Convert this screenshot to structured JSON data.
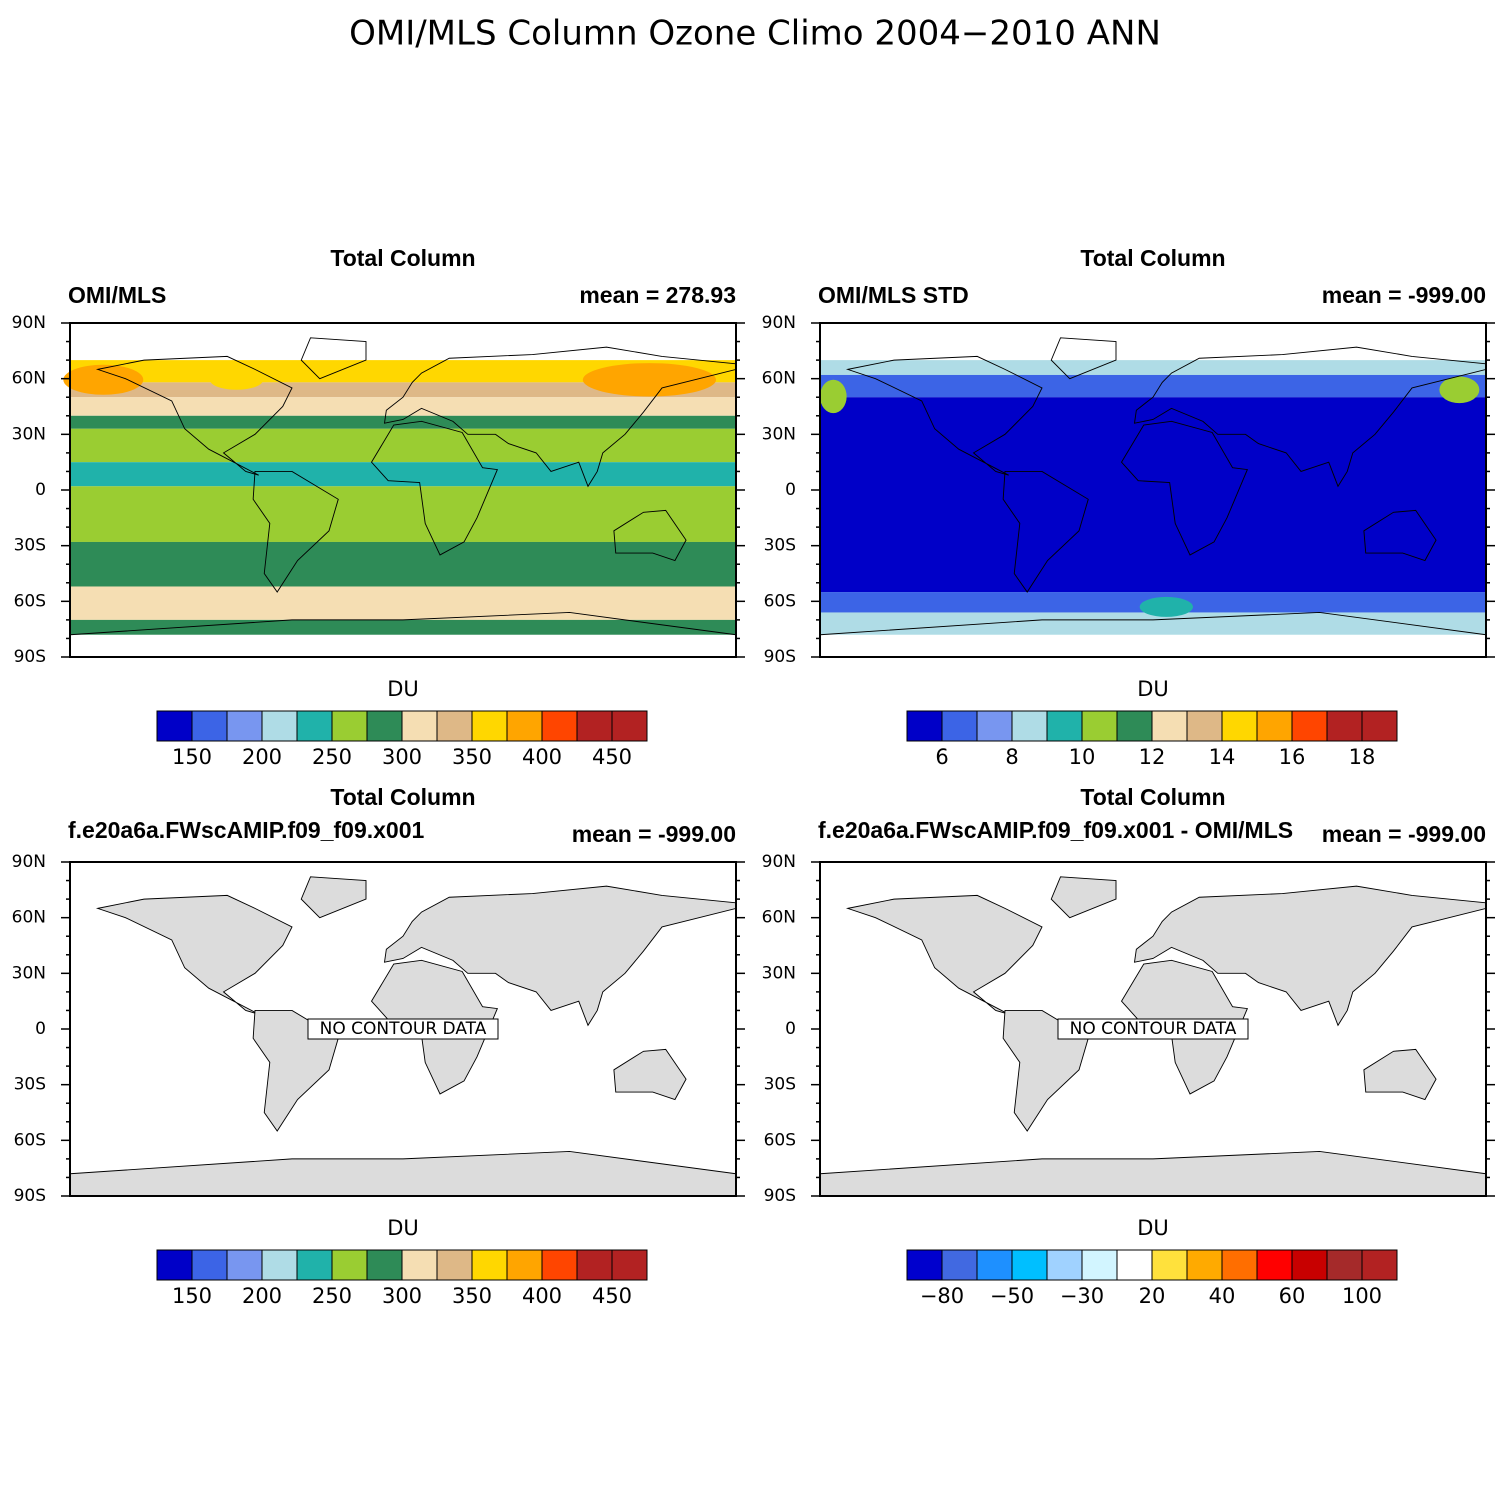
{
  "title": "OMI/MLS Column Ozone Climo 2004−2010 ANN",
  "panels": [
    {
      "title": "Total Column",
      "left": "OMI/MLS",
      "right": "mean = 278.93",
      "lat_labels": [
        "90N",
        "60N",
        "30N",
        "0",
        "30S",
        "60S",
        "90S"
      ],
      "colorbar": {
        "label": "DU",
        "colors": [
          "#0000c8",
          "#3c64e6",
          "#7896f0",
          "#afdce6",
          "#20b2aa",
          "#9acd32",
          "#2e8b57",
          "#f5deb3",
          "#deb887",
          "#ffd700",
          "#ffa500",
          "#ff4500",
          "#b22222",
          "#b22222"
        ],
        "labels": [
          "150",
          "200",
          "250",
          "300",
          "350",
          "400",
          "450"
        ]
      }
    },
    {
      "title": "Total Column",
      "left": "OMI/MLS STD",
      "right": "mean = -999.00",
      "lat_labels": [
        "90N",
        "60N",
        "30N",
        "0",
        "30S",
        "60S",
        "90S"
      ],
      "colorbar": {
        "label": "DU",
        "colors": [
          "#0000c8",
          "#3c64e6",
          "#7896f0",
          "#afdce6",
          "#20b2aa",
          "#9acd32",
          "#2e8b57",
          "#f5deb3",
          "#deb887",
          "#ffd700",
          "#ffa500",
          "#ff4500",
          "#b22222",
          "#b22222"
        ],
        "labels": [
          "6",
          "8",
          "10",
          "12",
          "14",
          "16",
          "18"
        ]
      }
    },
    {
      "title": "Total Column",
      "left": "f.e20a6a.FWscAMIP.f09_f09.x001",
      "right": "mean = -999.00",
      "note": "NO CONTOUR DATA",
      "lat_labels": [
        "90N",
        "60N",
        "30N",
        "0",
        "30S",
        "60S",
        "90S"
      ],
      "colorbar": {
        "label": "DU",
        "colors": [
          "#0000c8",
          "#3c64e6",
          "#7896f0",
          "#afdce6",
          "#20b2aa",
          "#9acd32",
          "#2e8b57",
          "#f5deb3",
          "#deb887",
          "#ffd700",
          "#ffa500",
          "#ff4500",
          "#b22222",
          "#b22222"
        ],
        "labels": [
          "150",
          "200",
          "250",
          "300",
          "350",
          "400",
          "450"
        ]
      }
    },
    {
      "title": "Total Column",
      "left": "f.e20a6a.FWscAMIP.f09_f09.x001 - OMI/MLS",
      "right": "mean = -999.00",
      "note": "NO CONTOUR DATA",
      "lat_labels": [
        "90N",
        "60N",
        "30N",
        "0",
        "30S",
        "60S",
        "90S"
      ],
      "colorbar": {
        "label": "DU",
        "colors": [
          "#0000cd",
          "#4169e1",
          "#1e90ff",
          "#00bfff",
          "#a0d2ff",
          "#d2f5ff",
          "#ffffff",
          "#ffe13c",
          "#ffaa00",
          "#ff6e00",
          "#ff0000",
          "#c80000",
          "#a52a2a",
          "#b22222"
        ],
        "labels": [
          "−80",
          "−50",
          "−30",
          "20",
          "40",
          "60",
          "100"
        ]
      }
    }
  ]
}
